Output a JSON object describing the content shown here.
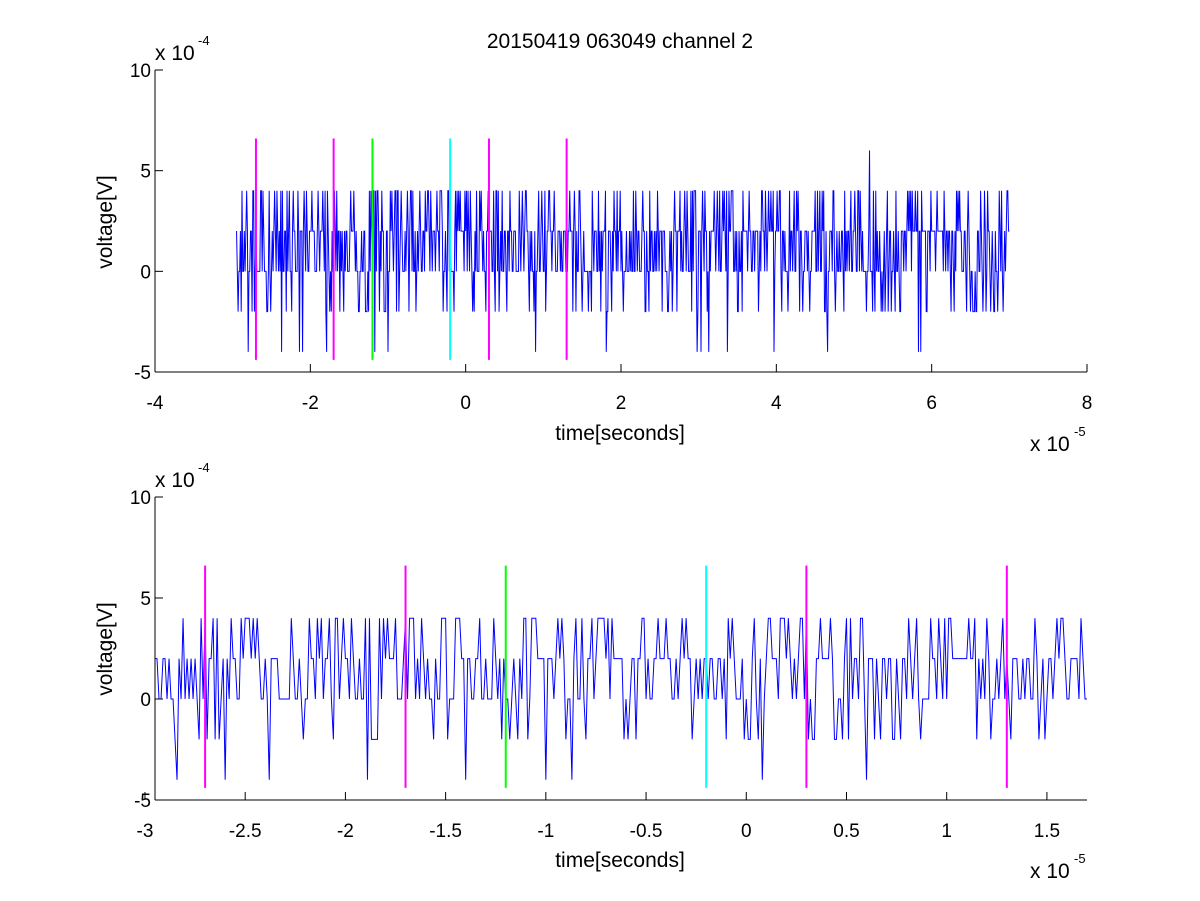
{
  "figure_title": "20150419 063049 channel 2",
  "colors": {
    "signal": "#0000ff",
    "magenta": "#ff00ff",
    "green": "#00ff00",
    "cyan": "#00ffff",
    "axes": "#000000",
    "background": "#ffffff"
  },
  "chart_data": [
    {
      "type": "line",
      "title": "20150419 063049 channel 2",
      "xlabel": "time[seconds]",
      "ylabel": "voltage[V]",
      "x_multiplier": "x 10",
      "x_exponent": "-5",
      "y_multiplier": "x 10",
      "y_exponent": "-4",
      "xlim": [
        -4e-05,
        8e-05
      ],
      "ylim": [
        -0.0005,
        0.001
      ],
      "x_tick_values": [
        -4e-05,
        -2e-05,
        0,
        2e-05,
        4e-05,
        6e-05,
        8e-05
      ],
      "x_tick_labels": [
        "-4",
        "-2",
        "0",
        "2",
        "4",
        "6",
        "8"
      ],
      "y_tick_values": [
        -0.0005,
        0,
        0.0005,
        0.001
      ],
      "y_tick_labels": [
        "-5",
        "0",
        "5",
        "10"
      ],
      "grid": false,
      "series": [
        {
          "color": "#0000ff",
          "x_start": -2.95e-05,
          "x_end": 7e-05,
          "sample_step": 1e-07,
          "quantization_step": 0.0002,
          "value_set": [
            -0.0004,
            -0.0002,
            0,
            0.0002,
            0.0004,
            0.0006
          ],
          "baseline_values": [
            0,
            0.0002
          ],
          "peak": {
            "x": 5.2e-05,
            "y": 0.0006
          },
          "min": {
            "x": -1e-05,
            "y": -0.0004
          }
        }
      ],
      "markers": [
        {
          "x": -2.7e-05,
          "color": "#ff00ff",
          "y_range": [
            -0.00044,
            0.00066
          ]
        },
        {
          "x": -1.7e-05,
          "color": "#ff00ff",
          "y_range": [
            -0.00044,
            0.00066
          ]
        },
        {
          "x": -1.2e-05,
          "color": "#00ff00",
          "y_range": [
            -0.00044,
            0.00066
          ]
        },
        {
          "x": -2e-06,
          "color": "#00ffff",
          "y_range": [
            -0.00044,
            0.00066
          ]
        },
        {
          "x": 3e-06,
          "color": "#ff00ff",
          "y_range": [
            -0.00044,
            0.00066
          ]
        },
        {
          "x": 1.3e-05,
          "color": "#ff00ff",
          "y_range": [
            -0.00044,
            0.00066
          ]
        }
      ]
    },
    {
      "type": "line",
      "title": "",
      "xlabel": "time[seconds]",
      "ylabel": "voltage[V]",
      "x_multiplier": "x 10",
      "x_exponent": "-5",
      "y_multiplier": "x 10",
      "y_exponent": "-4",
      "xlim": [
        -2.95e-05,
        1.7e-05
      ],
      "ylim": [
        -0.0005,
        0.001
      ],
      "x_tick_values": [
        -3e-05,
        -2.5e-05,
        -2e-05,
        -1.5e-05,
        -1e-05,
        -5e-06,
        0,
        5e-06,
        1e-05,
        1.5e-05
      ],
      "x_tick_labels": [
        "-3",
        "-2.5",
        "-2",
        "-1.5",
        "-1",
        "-0.5",
        "0",
        "0.5",
        "1",
        "1.5"
      ],
      "y_tick_values": [
        -0.0005,
        0,
        0.0005,
        0.001
      ],
      "y_tick_labels": [
        "-5",
        "0",
        "5",
        "10"
      ],
      "grid": false,
      "series": [
        {
          "color": "#0000ff",
          "x_start": -2.95e-05,
          "x_end": 1.7e-05,
          "sample_step": 1e-07,
          "quantization_step": 0.0002,
          "value_set": [
            -0.0004,
            -0.0002,
            0,
            0.0002,
            0.0004
          ],
          "baseline_values": [
            0,
            0.0002
          ],
          "min": {
            "x": -1e-05,
            "y": -0.0004
          }
        }
      ],
      "markers": [
        {
          "x": -2.7e-05,
          "color": "#ff00ff",
          "y_range": [
            -0.00044,
            0.00066
          ]
        },
        {
          "x": -1.7e-05,
          "color": "#ff00ff",
          "y_range": [
            -0.00044,
            0.00066
          ]
        },
        {
          "x": -1.2e-05,
          "color": "#00ff00",
          "y_range": [
            -0.00044,
            0.00066
          ]
        },
        {
          "x": -2e-06,
          "color": "#00ffff",
          "y_range": [
            -0.00044,
            0.00066
          ]
        },
        {
          "x": 3e-06,
          "color": "#ff00ff",
          "y_range": [
            -0.00044,
            0.00066
          ]
        },
        {
          "x": 1.3e-05,
          "color": "#ff00ff",
          "y_range": [
            -0.00044,
            0.00066
          ]
        }
      ]
    }
  ]
}
